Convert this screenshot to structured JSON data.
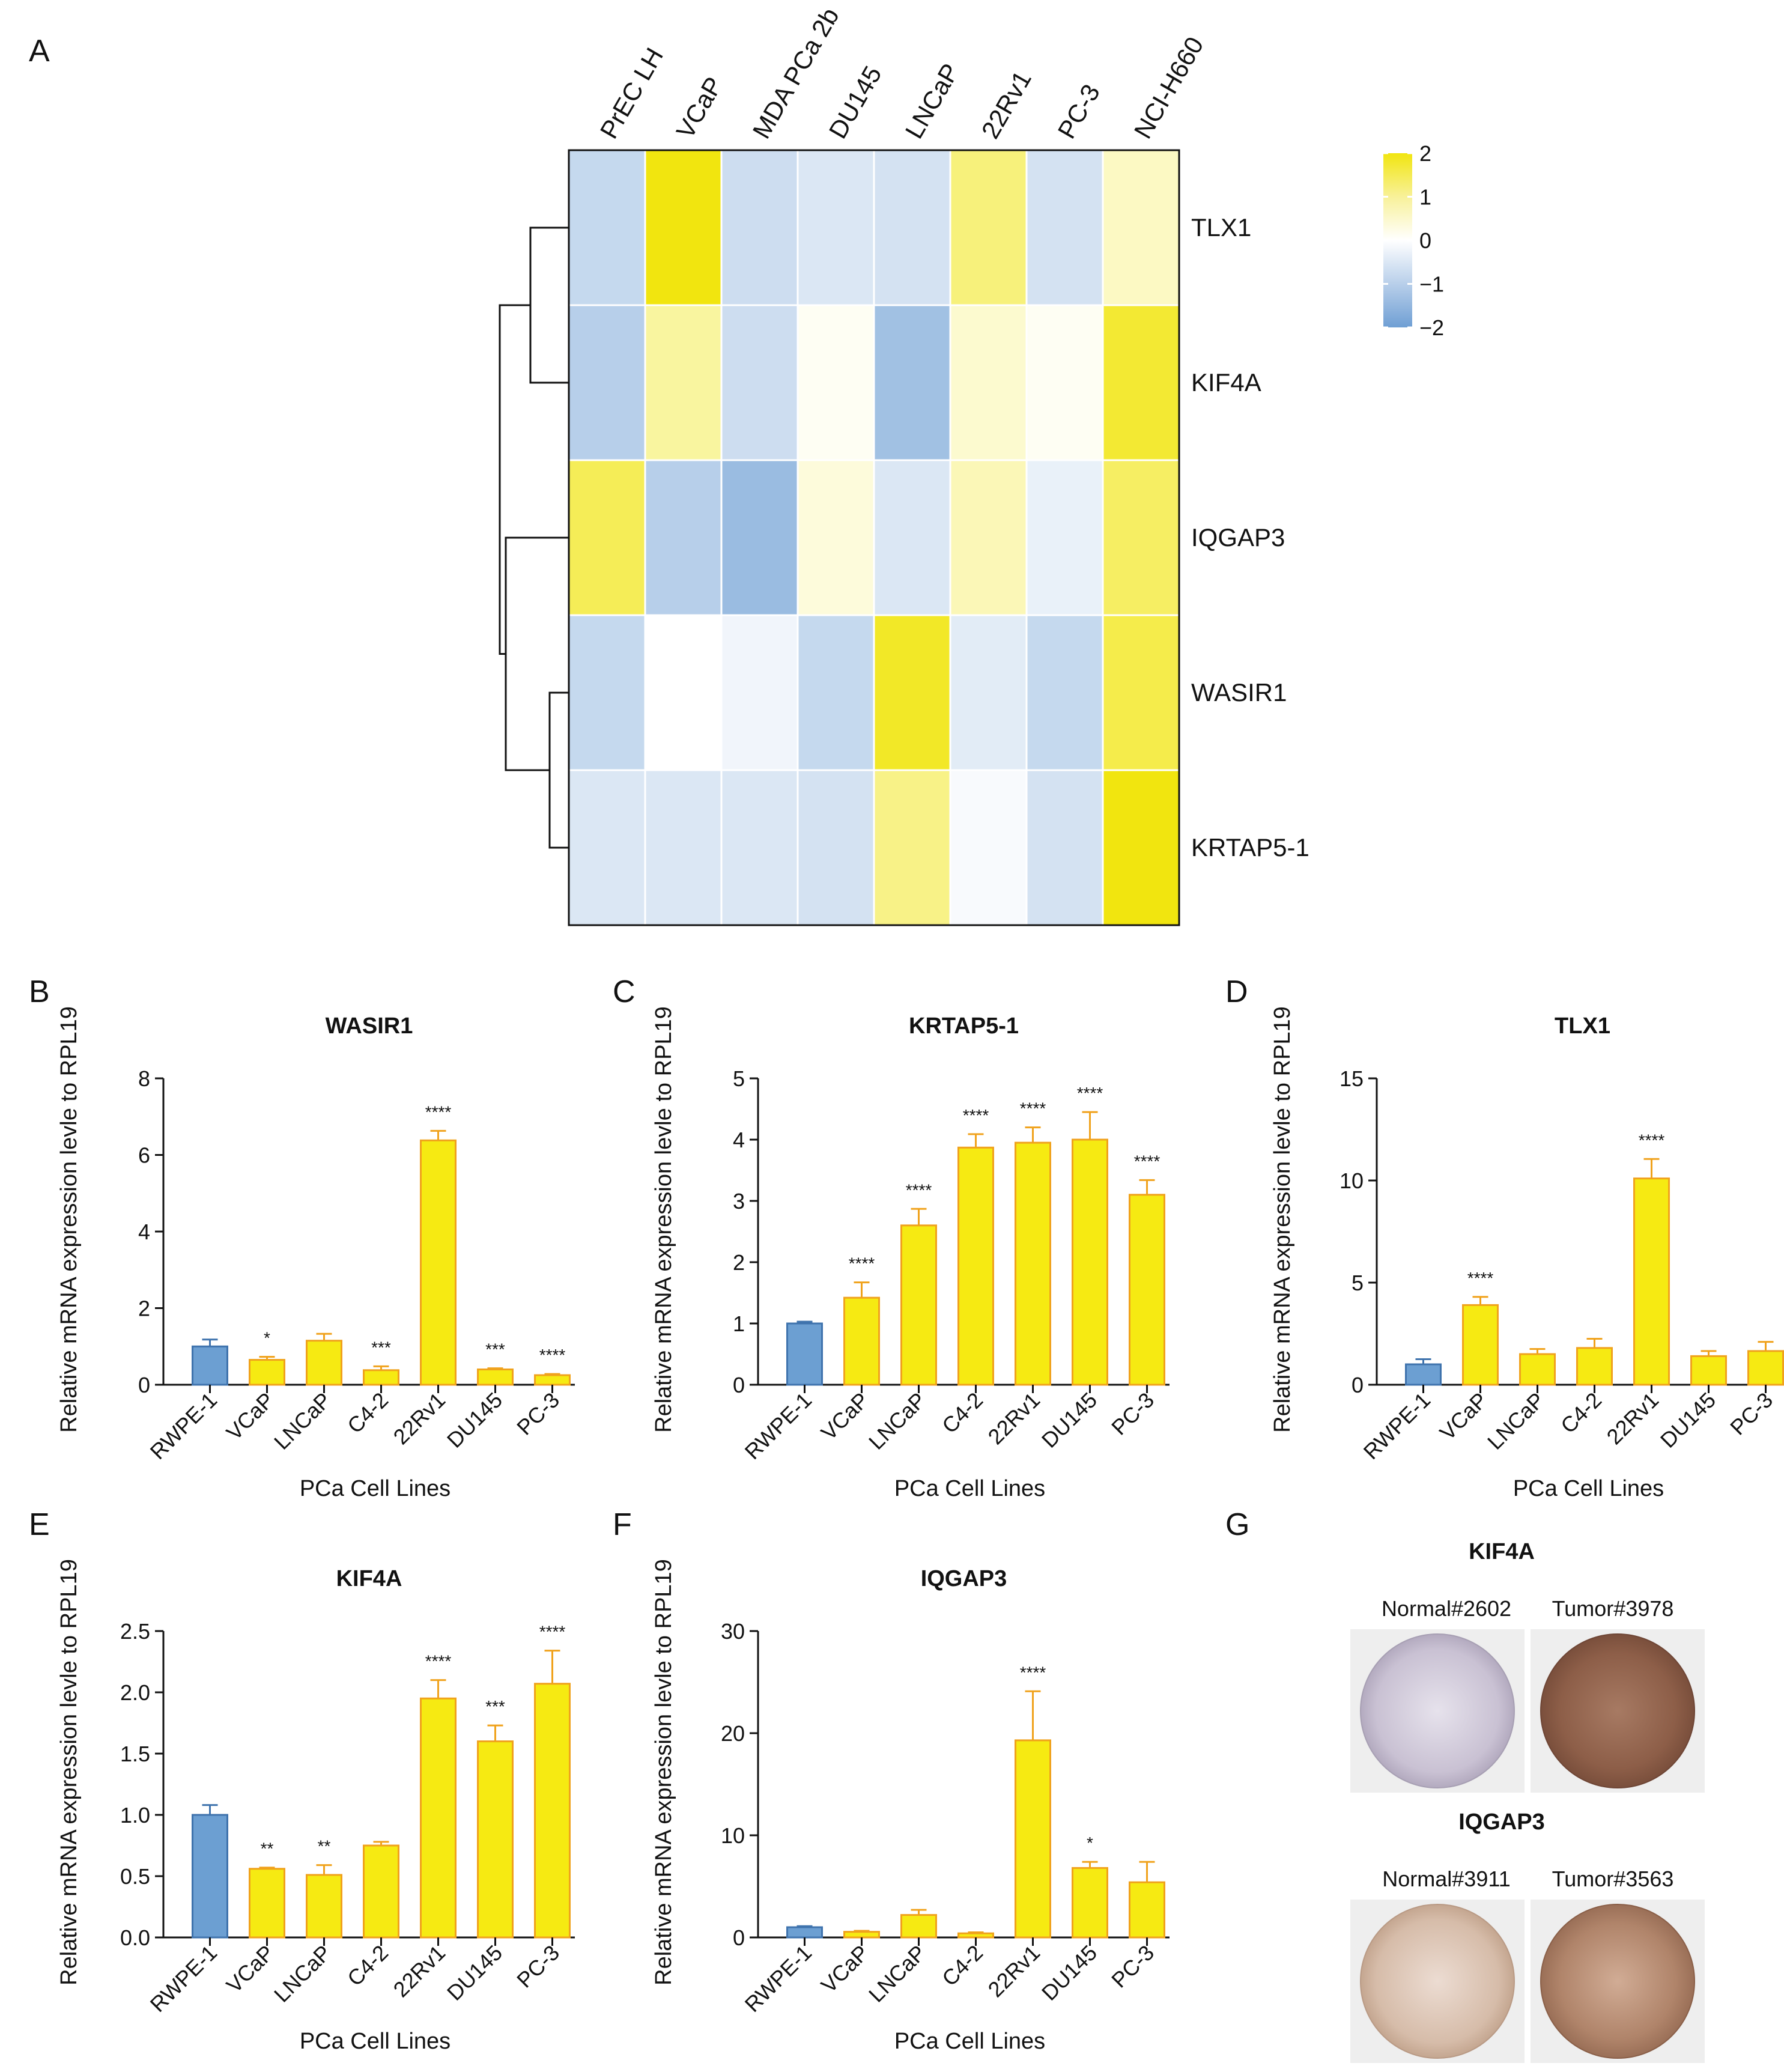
{
  "colors": {
    "yellow_high": "#f1e50f",
    "white_mid": "#ffffff",
    "blue_low": "#6f9fd4",
    "bar_ctrl_fill": "#6c9fd2",
    "bar_ctrl_edge": "#3f73ad",
    "bar_fill": "#f6ea12",
    "bar_edge": "#f0a21c",
    "normal_tissue": "#cfc6d6",
    "tumor_tissue_kif4a": "#9a6b55",
    "normal_tissue_iqgap3": "#d9bfae",
    "tumor_tissue_iqgap3": "#b58b72"
  },
  "panel_labels": [
    "A",
    "B",
    "C",
    "D",
    "E",
    "F",
    "G"
  ],
  "chart_data": [
    {
      "panel": "A",
      "type": "heatmap",
      "columns": [
        "PrEC LH",
        "VCaP",
        "MDA PCa 2b",
        "DU145",
        "LNCaP",
        "22Rv1",
        "PC-3",
        "NCI-H660"
      ],
      "rows": [
        "TLX1",
        "KIF4A",
        "IQGAP3",
        "WASIR1",
        "KRTAP5-1"
      ],
      "values": [
        [
          -0.8,
          2.0,
          -0.7,
          -0.5,
          -0.6,
          1.1,
          -0.6,
          0.5
        ],
        [
          -1.0,
          0.8,
          -0.7,
          0.1,
          -1.3,
          0.4,
          0.1,
          1.7
        ],
        [
          1.4,
          -1.0,
          -1.4,
          0.3,
          -0.5,
          0.6,
          -0.3,
          1.3
        ],
        [
          -0.8,
          0.0,
          -0.2,
          -0.8,
          1.8,
          -0.4,
          -0.8,
          1.5
        ],
        [
          -0.5,
          -0.5,
          -0.5,
          -0.6,
          1.0,
          -0.1,
          -0.6,
          2.0
        ]
      ],
      "row_dendrogram": "((TLX1,KIF4A),(IQGAP3,(WASIR1,KRTAP5-1)))",
      "legend": {
        "ticks": [
          "2",
          "1",
          "0",
          "−1",
          "−2"
        ],
        "range": [
          -2,
          2
        ]
      }
    },
    {
      "panel": "B",
      "type": "bar",
      "title": "WASIR1",
      "xlabel": "PCa Cell Lines",
      "ylabel": "Relative mRNA expression levle to RPL19",
      "categories": [
        "RWPE-1",
        "VCaP",
        "LNCaP",
        "C4-2",
        "22Rv1",
        "DU145",
        "PC-3"
      ],
      "values": [
        1.0,
        0.65,
        1.15,
        0.38,
        6.38,
        0.4,
        0.25
      ],
      "errors": [
        0.18,
        0.08,
        0.18,
        0.1,
        0.25,
        0.03,
        0.03
      ],
      "significance": [
        "",
        "*",
        "",
        "***",
        "****",
        "***",
        "****"
      ],
      "ylim": [
        0,
        8
      ],
      "yticks": [
        0,
        2,
        4,
        6,
        8
      ],
      "yticklabels": [
        "0",
        "2",
        "4",
        "6",
        "8"
      ]
    },
    {
      "panel": "C",
      "type": "bar",
      "title": "KRTAP5-1",
      "xlabel": "PCa Cell Lines",
      "ylabel": "Relative mRNA expression levle to RPL19",
      "categories": [
        "RWPE-1",
        "VCaP",
        "LNCaP",
        "C4-2",
        "22Rv1",
        "DU145",
        "PC-3"
      ],
      "values": [
        1.0,
        1.42,
        2.6,
        3.87,
        3.95,
        4.0,
        3.1
      ],
      "errors": [
        0.03,
        0.25,
        0.27,
        0.22,
        0.25,
        0.45,
        0.24
      ],
      "significance": [
        "",
        "****",
        "****",
        "****",
        "****",
        "****",
        "****"
      ],
      "ylim": [
        0,
        5
      ],
      "yticks": [
        0,
        1,
        2,
        3,
        4,
        5
      ],
      "yticklabels": [
        "0",
        "1",
        "2",
        "3",
        "4",
        "5"
      ]
    },
    {
      "panel": "D",
      "type": "bar",
      "title": "TLX1",
      "xlabel": "PCa Cell Lines",
      "ylabel": "Relative mRNA expression levle to RPL19",
      "categories": [
        "RWPE-1",
        "VCaP",
        "LNCaP",
        "C4-2",
        "22Rv1",
        "DU145",
        "PC-3"
      ],
      "values": [
        1.0,
        3.9,
        1.5,
        1.8,
        10.1,
        1.4,
        1.65
      ],
      "errors": [
        0.25,
        0.4,
        0.25,
        0.45,
        0.95,
        0.25,
        0.45
      ],
      "significance": [
        "",
        "****",
        "",
        "",
        "****",
        "",
        ""
      ],
      "ylim": [
        0,
        15
      ],
      "yticks": [
        0,
        5,
        10,
        15
      ],
      "yticklabels": [
        "0",
        "5",
        "10",
        "15"
      ]
    },
    {
      "panel": "E",
      "type": "bar",
      "title": "KIF4A",
      "xlabel": "PCa Cell Lines",
      "ylabel": "Relative mRNA expression levle to RPL19",
      "categories": [
        "RWPE-1",
        "VCaP",
        "LNCaP",
        "C4-2",
        "22Rv1",
        "DU145",
        "PC-3"
      ],
      "values": [
        1.0,
        0.56,
        0.51,
        0.75,
        1.95,
        1.6,
        2.07
      ],
      "errors": [
        0.08,
        0.01,
        0.08,
        0.03,
        0.15,
        0.13,
        0.27
      ],
      "significance": [
        "",
        "**",
        "**",
        "",
        "****",
        "***",
        "****"
      ],
      "ylim": [
        0,
        2.5
      ],
      "yticks": [
        0,
        0.5,
        1,
        1.5,
        2,
        2.5
      ],
      "yticklabels": [
        "0.0",
        "0.5",
        "1.0",
        "1.5",
        "2.0",
        "2.5"
      ]
    },
    {
      "panel": "F",
      "type": "bar",
      "title": "IQGAP3",
      "xlabel": "PCa Cell Lines",
      "ylabel": "Relative mRNA expression levle to RPL19",
      "categories": [
        "RWPE-1",
        "VCaP",
        "LNCaP",
        "C4-2",
        "22Rv1",
        "DU145",
        "PC-3"
      ],
      "values": [
        1.0,
        0.55,
        2.2,
        0.4,
        19.3,
        6.8,
        5.4
      ],
      "errors": [
        0.1,
        0.1,
        0.5,
        0.1,
        4.8,
        0.6,
        2.0
      ],
      "significance": [
        "",
        "",
        "",
        "",
        "****",
        "*",
        ""
      ],
      "ylim": [
        0,
        30
      ],
      "yticks": [
        0,
        10,
        20,
        30
      ],
      "yticklabels": [
        "0",
        "10",
        "20",
        "30"
      ]
    }
  ],
  "panel_g": {
    "groups": [
      {
        "title": "KIF4A",
        "labels": [
          "Normal#2602",
          "Tumor#3978"
        ]
      },
      {
        "title": "IQGAP3",
        "labels": [
          "Normal#3911",
          "Tumor#3563"
        ]
      }
    ]
  }
}
